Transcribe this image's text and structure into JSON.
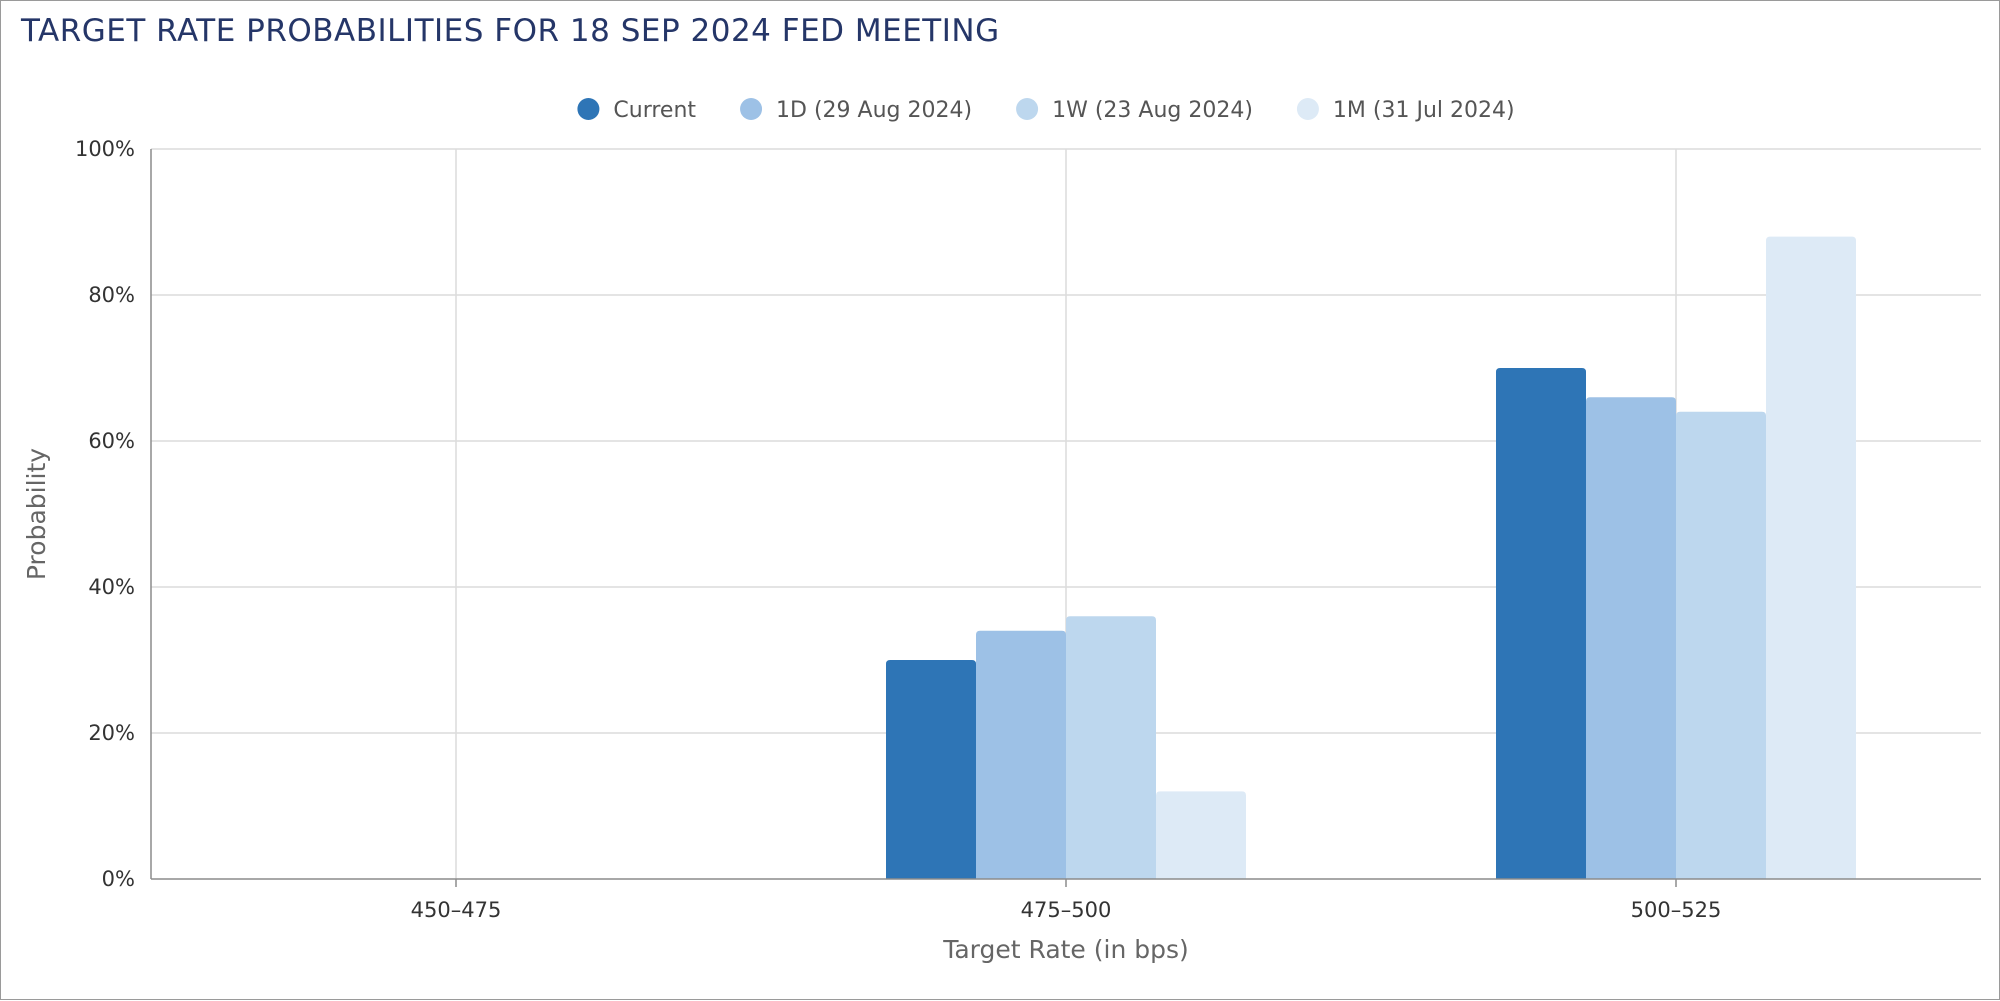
{
  "chart_data": {
    "type": "bar",
    "title": "TARGET RATE PROBABILITIES FOR 18 SEP 2024 FED MEETING",
    "xlabel": "Target Rate (in bps)",
    "ylabel": "Probability",
    "categories": [
      "450–475",
      "475–500",
      "500–525"
    ],
    "series": [
      {
        "name": "Current",
        "values": [
          0,
          30,
          70
        ],
        "color": "#2e75b6"
      },
      {
        "name": "1D (29 Aug 2024)",
        "values": [
          0,
          34,
          66
        ],
        "color": "#9dc1e6"
      },
      {
        "name": "1W (23 Aug 2024)",
        "values": [
          0,
          36,
          64
        ],
        "color": "#bdd7ee"
      },
      {
        "name": "1M (31 Jul 2024)",
        "values": [
          0,
          12,
          88
        ],
        "color": "#ddeaf6"
      }
    ],
    "ylim": [
      0,
      100
    ],
    "yticks": [
      0,
      20,
      40,
      60,
      80,
      100
    ],
    "ytick_suffix": "%",
    "grid": true,
    "legend_position": "top-center"
  }
}
